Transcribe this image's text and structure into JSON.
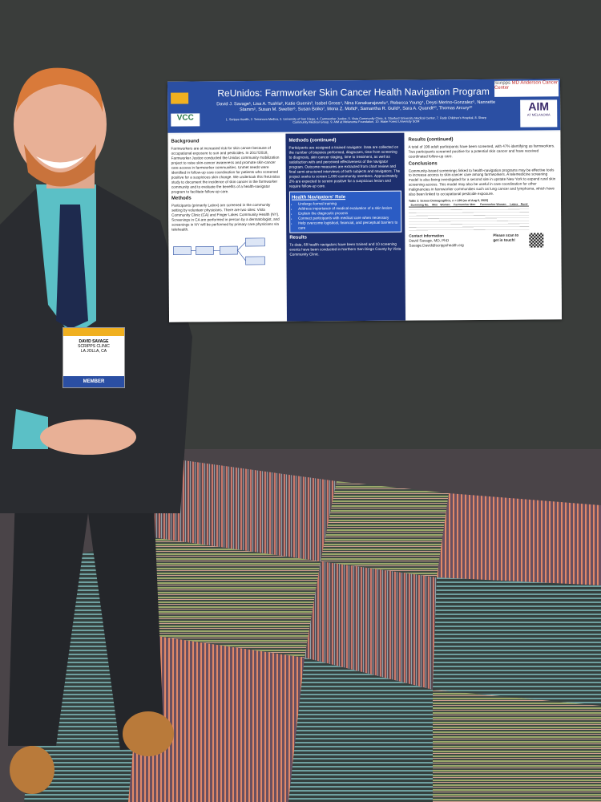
{
  "poster": {
    "title": "ReUnidos: Farmworker Skin Cancer Health Navigation Program",
    "authors": "David J. Savage¹, Lisa A. Tushla², Katie Guenin³, Isabel Gross⁴, Nina Kanakarajavelu⁴, Rebecca Young⁴, Deysi Merino-Gonzalez⁵, Nannette Stamm⁵, Susan M. Swetter⁶, Susan Boiko⁷, Mona Z. Mofid⁸, Samantha R. Guild⁹, Sara A. Quandt¹⁰, Thomas Arcury¹⁰",
    "affiliations": "1. Scripps Health, 2. Terranova Medica, 3. University of San Diego, 4. Farmworker Justice, 5. Vista Community Clinic, 6. Stanford University Medical Center, 7. Rady Children's Hospital, 8. Sharp Community Medical Group, 9. AIM at Melanoma Foundation, 10. Wake Forest University SOM",
    "logos": {
      "left": "VCC",
      "scripps": "Scripps",
      "mda": "MD Anderson Cancer Center",
      "aim": "AIM",
      "aim_sub": "AT MELANOMA"
    },
    "background": {
      "heading": "Background",
      "text": "Farmworkers are at increased risk for skin cancer because of occupational exposure to sun and pesticides. In 2017/2018, Farmworker Justice conducted the Unidos community mobilization project to raise skin-cancer awareness and promote skin-cancer care access in farmworker communities. Unmet needs were identified in follow-up care coordination for patients who screened positive for a suspicious skin change. We undertook this ReUnidos study to document the incidence of skin cancer in the farmworker community and to evaluate the benefits of a health-navigator program to facilitate follow-up care."
    },
    "methods": {
      "heading": "Methods",
      "text": "Participants (primarily Latinx) are screened in the community setting by volunteer physicians. There are two sites: Vista Community Clinic (CA) and Finger Lakes Community Health (NY). Screenings in CA are performed in person by a dermatologist, and screenings in NY will be performed by primary care physicians via telehealth."
    },
    "methods_cont": {
      "heading": "Methods (continued)",
      "text": "Participants are assigned a trained navigator. Data are collected on the number of biopsies performed, diagnoses, time from screening to diagnosis, skin cancer staging, time to treatment, as well as satisfaction with and perceived effectiveness of the navigator program. Outcome measures are extracted from chart review and final semi-structured interviews of both subjects and navigators. The project seeks to screen 1,000 community members. Approximately 2% are expected to screen positive for a suspicious lesion and require follow-up care."
    },
    "navigators": {
      "heading": "Health Navigators' Role",
      "items": [
        "Undergo formal training",
        "Address importance of medical evaluation of a skin lesion",
        "Explain the diagnostic process",
        "Connect participants with medical care when necessary",
        "Help overcome logistical, financial, and perceptual barriers to care"
      ]
    },
    "results": {
      "heading": "Results",
      "text": "To date, 68 health navigators have been trained and 10 screening events have been conducted in Northern San Diego County by Vista Community Clinic."
    },
    "results_cont": {
      "heading": "Results (continued)",
      "text": "A total of 199 adult participants have been screened, with 47% identifying as farmworkers. Two participants screened positive for a potential skin cancer and have received coordinated follow-up care."
    },
    "conclusions": {
      "heading": "Conclusions",
      "text": "Community-based screenings linked to health-navigation programs may be effective tools to increase access to skin-cancer care among farmworkers. A telemedicine screening model is also being investigated for a second site in upstate New York to expand rural skin screening access. This model may also be useful in care coordination for other malignancies in farmworker communities such as lung cancer and lymphoma, which have also been linked to occupational pesticide exposure."
    },
    "table": {
      "caption": "Table 1: Screen Demographics, n = 199 (as of Aug 6, 2022)",
      "headers": [
        "Screening No.",
        "Men",
        "Women",
        "Farmworker Men",
        "Farmworker Women",
        "Latinx",
        "Rural"
      ]
    },
    "contact": {
      "heading": "Contact Information",
      "name": "David Savage, MD, PhD",
      "email": "Savage.David@scrippshealth.org",
      "scan": "Please scan to get in touch!"
    }
  },
  "badge": {
    "name": "DAVID SAVAGE",
    "org": "SCRIPPS CLINIC",
    "city": "LA JOLLA, CA",
    "type": "MEMBER"
  }
}
